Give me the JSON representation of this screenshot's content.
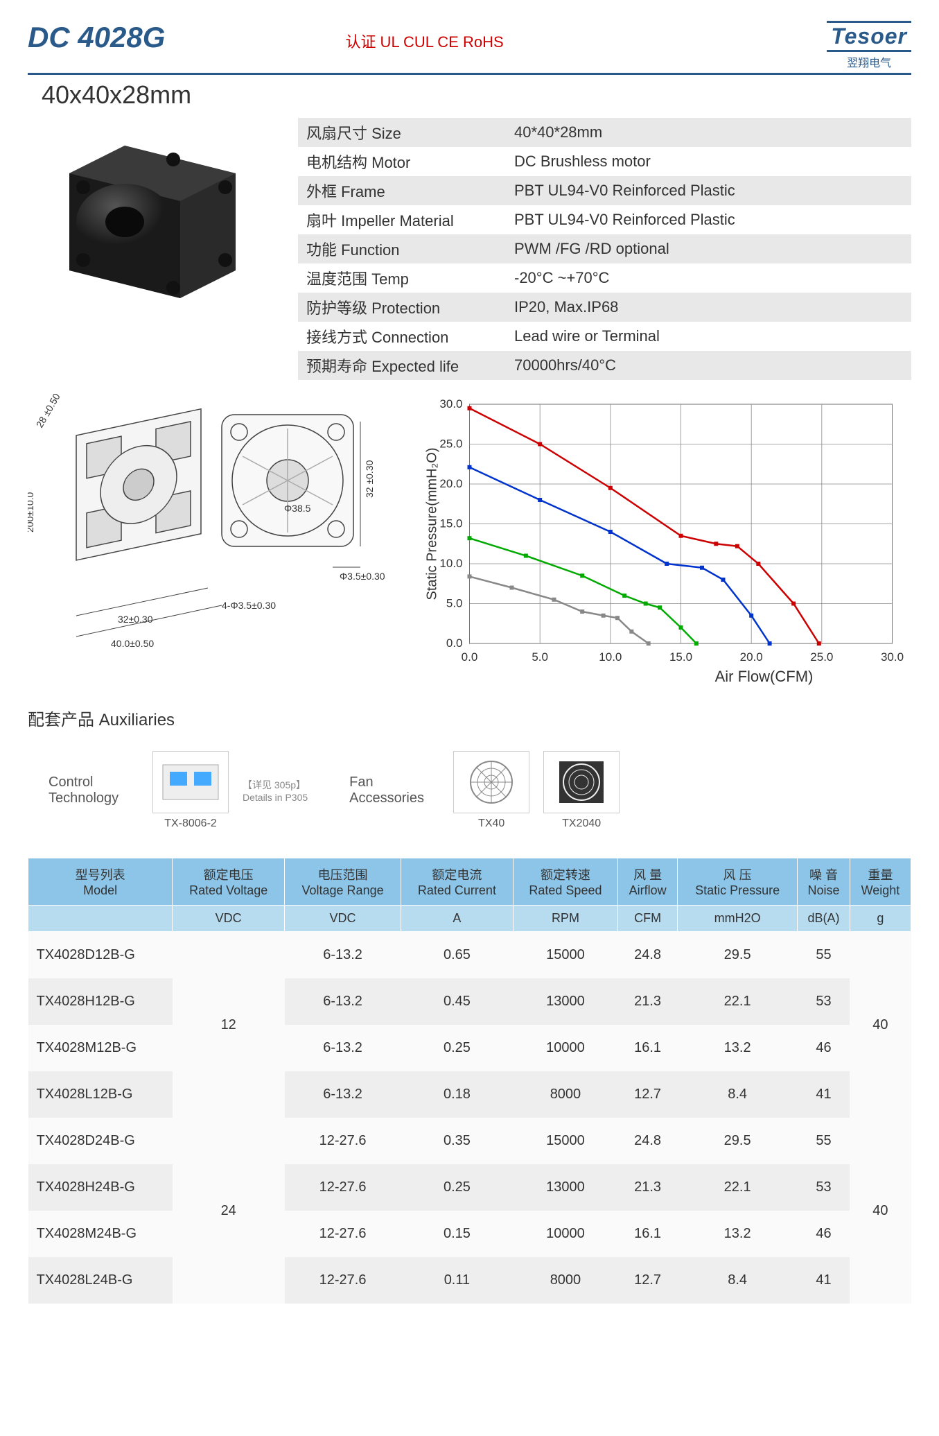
{
  "header": {
    "title": "DC 4028G",
    "cert": "认证 UL CUL CE RoHS",
    "logo": "Tesoer",
    "logo_sub": "翌翔电气",
    "dims": "40x40x28mm"
  },
  "specs": [
    {
      "label": "风扇尺寸 Size",
      "value": "40*40*28mm"
    },
    {
      "label": "电机结构 Motor",
      "value": "DC Brushless motor"
    },
    {
      "label": "外框 Frame",
      "value": "PBT UL94-V0 Reinforced Plastic"
    },
    {
      "label": "扇叶 Impeller Material",
      "value": "PBT UL94-V0 Reinforced Plastic"
    },
    {
      "label": "功能 Function",
      "value": "PWM /FG /RD optional"
    },
    {
      "label": "温度范围 Temp",
      "value": "-20°C ~+70°C"
    },
    {
      "label": "防护等级 Protection",
      "value": "IP20, Max.IP68"
    },
    {
      "label": "接线方式 Connection",
      "value": "Lead wire or Terminal"
    },
    {
      "label": "预期寿命 Expected life",
      "value": "70000hrs/40°C"
    }
  ],
  "drawing": {
    "dims": {
      "depth": "28 ±0.50",
      "wire": "200±10.0",
      "hole_dia": "Φ38.5",
      "side": "32 ±0.30",
      "mount": "Φ3.5±0.30",
      "pitch": "32±0.30",
      "width": "40.0±0.50",
      "holes": "4-Φ3.5±0.30"
    }
  },
  "chart": {
    "ylabel": "Static Pressure(mmH₂O)",
    "xlabel": "Air Flow(CFM)",
    "xlim": [
      0,
      30
    ],
    "ylim": [
      0,
      30
    ],
    "xtick_step": 5,
    "ytick_step": 5,
    "grid_color": "#888",
    "bg": "#fff",
    "xticks": [
      "0.0",
      "5.0",
      "10.0",
      "15.0",
      "20.0",
      "25.0",
      "30.0"
    ],
    "yticks": [
      "0.0",
      "5.0",
      "10.0",
      "15.0",
      "20.0",
      "25.0",
      "30.0"
    ],
    "series": [
      {
        "color": "#cc0000",
        "points": [
          [
            0,
            29.5
          ],
          [
            5,
            25
          ],
          [
            10,
            19.5
          ],
          [
            15,
            13.5
          ],
          [
            17.5,
            12.5
          ],
          [
            19,
            12.2
          ],
          [
            20.5,
            10
          ],
          [
            23,
            5
          ],
          [
            24.8,
            0
          ]
        ]
      },
      {
        "color": "#0033cc",
        "points": [
          [
            0,
            22.1
          ],
          [
            5,
            18
          ],
          [
            10,
            14
          ],
          [
            14,
            10
          ],
          [
            16.5,
            9.5
          ],
          [
            18,
            8
          ],
          [
            20,
            3.5
          ],
          [
            21.3,
            0
          ]
        ]
      },
      {
        "color": "#00aa00",
        "points": [
          [
            0,
            13.2
          ],
          [
            4,
            11
          ],
          [
            8,
            8.5
          ],
          [
            11,
            6
          ],
          [
            12.5,
            5
          ],
          [
            13.5,
            4.5
          ],
          [
            15,
            2
          ],
          [
            16.1,
            0
          ]
        ]
      },
      {
        "color": "#888888",
        "points": [
          [
            0,
            8.4
          ],
          [
            3,
            7
          ],
          [
            6,
            5.5
          ],
          [
            8,
            4
          ],
          [
            9.5,
            3.5
          ],
          [
            10.5,
            3.2
          ],
          [
            11.5,
            1.5
          ],
          [
            12.7,
            0
          ]
        ]
      }
    ]
  },
  "aux": {
    "title": "配套产品 Auxiliaries",
    "control": "Control\nTechnology",
    "control_item": "TX-8006-2",
    "control_detail": "【详见 305p】\nDetails in P305",
    "fan_acc": "Fan\nAccessories",
    "acc1": "TX40",
    "acc2": "TX2040"
  },
  "table": {
    "headers": [
      {
        "cn": "型号列表",
        "en": "Model"
      },
      {
        "cn": "额定电压",
        "en": "Rated Voltage"
      },
      {
        "cn": "电压范围",
        "en": "Voltage Range"
      },
      {
        "cn": "额定电流",
        "en": "Rated Current"
      },
      {
        "cn": "额定转速",
        "en": "Rated Speed"
      },
      {
        "cn": "风 量",
        "en": "Airflow"
      },
      {
        "cn": "风 压",
        "en": "Static Pressure"
      },
      {
        "cn": "噪 音",
        "en": "Noise"
      },
      {
        "cn": "重量",
        "en": "Weight"
      }
    ],
    "units": [
      "",
      "VDC",
      "VDC",
      "A",
      "RPM",
      "CFM",
      "mmH2O",
      "dB(A)",
      "g"
    ],
    "groups": [
      {
        "voltage": "12",
        "weight": "40",
        "rows": [
          {
            "model": "TX4028D12B-G",
            "range": "6-13.2",
            "current": "0.65",
            "speed": "15000",
            "airflow": "24.8",
            "pressure": "29.5",
            "noise": "55"
          },
          {
            "model": "TX4028H12B-G",
            "range": "6-13.2",
            "current": "0.45",
            "speed": "13000",
            "airflow": "21.3",
            "pressure": "22.1",
            "noise": "53"
          },
          {
            "model": "TX4028M12B-G",
            "range": "6-13.2",
            "current": "0.25",
            "speed": "10000",
            "airflow": "16.1",
            "pressure": "13.2",
            "noise": "46"
          },
          {
            "model": "TX4028L12B-G",
            "range": "6-13.2",
            "current": "0.18",
            "speed": "8000",
            "airflow": "12.7",
            "pressure": "8.4",
            "noise": "41"
          }
        ]
      },
      {
        "voltage": "24",
        "weight": "40",
        "rows": [
          {
            "model": "TX4028D24B-G",
            "range": "12-27.6",
            "current": "0.35",
            "speed": "15000",
            "airflow": "24.8",
            "pressure": "29.5",
            "noise": "55"
          },
          {
            "model": "TX4028H24B-G",
            "range": "12-27.6",
            "current": "0.25",
            "speed": "13000",
            "airflow": "21.3",
            "pressure": "22.1",
            "noise": "53"
          },
          {
            "model": "TX4028M24B-G",
            "range": "12-27.6",
            "current": "0.15",
            "speed": "10000",
            "airflow": "16.1",
            "pressure": "13.2",
            "noise": "46"
          },
          {
            "model": "TX4028L24B-G",
            "range": "12-27.6",
            "current": "0.11",
            "speed": "8000",
            "airflow": "12.7",
            "pressure": "8.4",
            "noise": "41"
          }
        ]
      }
    ]
  }
}
